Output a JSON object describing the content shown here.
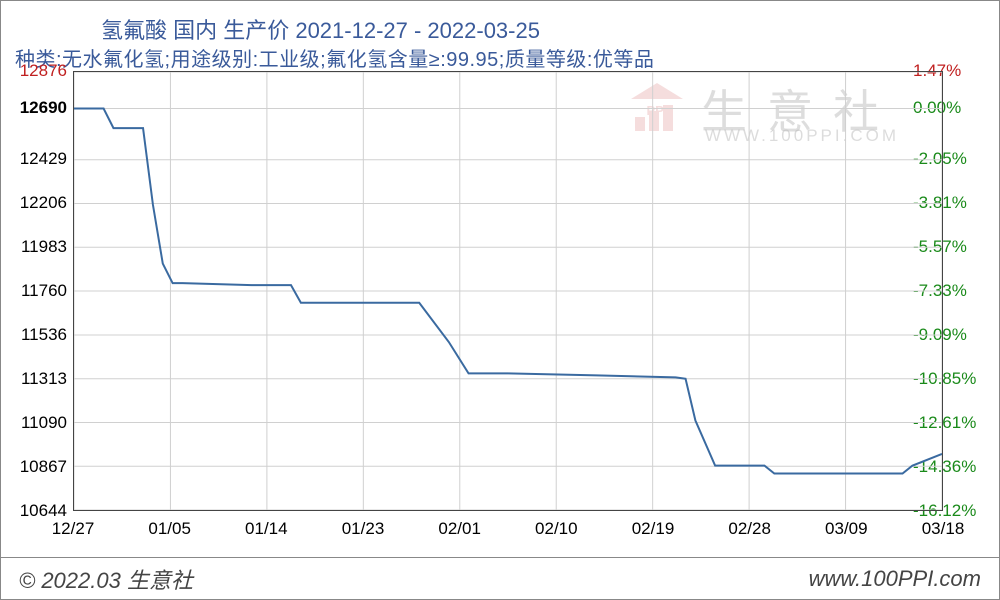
{
  "title": "氢氟酸 国内 生产价 2021-12-27 - 2022-03-25",
  "subtitle": "种类:无水氟化氢;用途级别:工业级;氟化氢含量≥:99.95;质量等级:优等品",
  "footer_left": "© 2022.03 生意社",
  "footer_right": "www.100PPI.com",
  "watermark_main": "生意社",
  "watermark_sub": "WWW.100PPI.COM",
  "chart": {
    "type": "line",
    "background_color": "#ffffff",
    "grid_color": "#d0d0d0",
    "border_color": "#444444",
    "line_color": "#3a6aa0",
    "line_width": 2,
    "title_color": "#3a5a9a",
    "title_fontsize": 22,
    "subtitle_fontsize": 20,
    "label_fontsize": 17,
    "y_left": {
      "color_normal": "#000000",
      "color_highlight": "#c02020",
      "ticks": [
        12876,
        12690,
        12429,
        12206,
        11983,
        11760,
        11536,
        11313,
        11090,
        10867,
        10644
      ],
      "highlight_indices": [
        0
      ],
      "bold_indices": [
        1
      ],
      "min": 10644,
      "max": 12876
    },
    "y_right": {
      "color_normal": "#1a8a1a",
      "color_highlight": "#c02020",
      "ticks": [
        "1.47%",
        "0.00%",
        "-2.05%",
        "-3.81%",
        "-5.57%",
        "-7.33%",
        "-9.09%",
        "-10.85%",
        "-12.61%",
        "-14.36%",
        "-16.12%"
      ],
      "highlight_indices": [
        0
      ]
    },
    "x": {
      "ticks": [
        "12/27",
        "01/05",
        "01/14",
        "01/23",
        "02/01",
        "02/10",
        "02/19",
        "02/28",
        "03/09",
        "03/18"
      ],
      "min": 0,
      "max": 88
    },
    "series": [
      {
        "x": 0,
        "y": 12690
      },
      {
        "x": 3,
        "y": 12690
      },
      {
        "x": 4,
        "y": 12590
      },
      {
        "x": 7,
        "y": 12590
      },
      {
        "x": 8,
        "y": 12200
      },
      {
        "x": 9,
        "y": 11900
      },
      {
        "x": 10,
        "y": 11800
      },
      {
        "x": 11,
        "y": 11800
      },
      {
        "x": 18,
        "y": 11790
      },
      {
        "x": 22,
        "y": 11790
      },
      {
        "x": 23,
        "y": 11700
      },
      {
        "x": 35,
        "y": 11700
      },
      {
        "x": 38,
        "y": 11500
      },
      {
        "x": 40,
        "y": 11340
      },
      {
        "x": 44,
        "y": 11340
      },
      {
        "x": 53,
        "y": 11330
      },
      {
        "x": 61,
        "y": 11320
      },
      {
        "x": 62,
        "y": 11313
      },
      {
        "x": 63,
        "y": 11100
      },
      {
        "x": 65,
        "y": 10870
      },
      {
        "x": 70,
        "y": 10870
      },
      {
        "x": 71,
        "y": 10830
      },
      {
        "x": 84,
        "y": 10830
      },
      {
        "x": 85,
        "y": 10870
      },
      {
        "x": 88,
        "y": 10930
      }
    ]
  }
}
